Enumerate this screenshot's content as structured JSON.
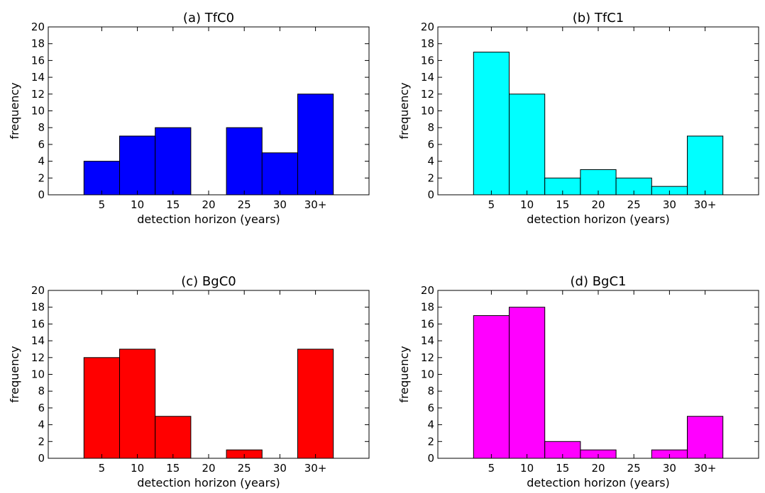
{
  "chart_data": [
    {
      "type": "bar",
      "title": "(a) TfC0",
      "xlabel": "detection horizon (years)",
      "ylabel": "frequency",
      "categories": [
        "5",
        "10",
        "15",
        "20",
        "25",
        "30",
        "30+"
      ],
      "values": [
        4,
        7,
        8,
        0,
        8,
        5,
        12
      ],
      "yticks": [
        "0",
        "2",
        "4",
        "6",
        "8",
        "10",
        "12",
        "14",
        "16",
        "18",
        "20"
      ],
      "ylim": [
        0,
        20
      ],
      "grid": false,
      "color": "#0000ff"
    },
    {
      "type": "bar",
      "title": "(b) TfC1",
      "xlabel": "detection horizon (years)",
      "ylabel": "frequency",
      "categories": [
        "5",
        "10",
        "15",
        "20",
        "25",
        "30",
        "30+"
      ],
      "values": [
        17,
        12,
        2,
        3,
        2,
        1,
        7
      ],
      "yticks": [
        "0",
        "2",
        "4",
        "6",
        "8",
        "10",
        "12",
        "14",
        "16",
        "18",
        "20"
      ],
      "ylim": [
        0,
        20
      ],
      "grid": false,
      "color": "#00ffff"
    },
    {
      "type": "bar",
      "title": "(c) BgC0",
      "xlabel": "detection horizon (years)",
      "ylabel": "frequency",
      "categories": [
        "5",
        "10",
        "15",
        "20",
        "25",
        "30",
        "30+"
      ],
      "values": [
        12,
        13,
        5,
        0,
        1,
        0,
        13
      ],
      "yticks": [
        "0",
        "2",
        "4",
        "6",
        "8",
        "10",
        "12",
        "14",
        "16",
        "18",
        "20"
      ],
      "ylim": [
        0,
        20
      ],
      "grid": false,
      "color": "#ff0000"
    },
    {
      "type": "bar",
      "title": "(d) BgC1",
      "xlabel": "detection horizon (years)",
      "ylabel": "frequency",
      "categories": [
        "5",
        "10",
        "15",
        "20",
        "25",
        "30",
        "30+"
      ],
      "values": [
        17,
        18,
        2,
        1,
        0,
        1,
        5
      ],
      "yticks": [
        "0",
        "2",
        "4",
        "6",
        "8",
        "10",
        "12",
        "14",
        "16",
        "18",
        "20"
      ],
      "ylim": [
        0,
        20
      ],
      "grid": false,
      "color": "#ff00ff"
    }
  ]
}
